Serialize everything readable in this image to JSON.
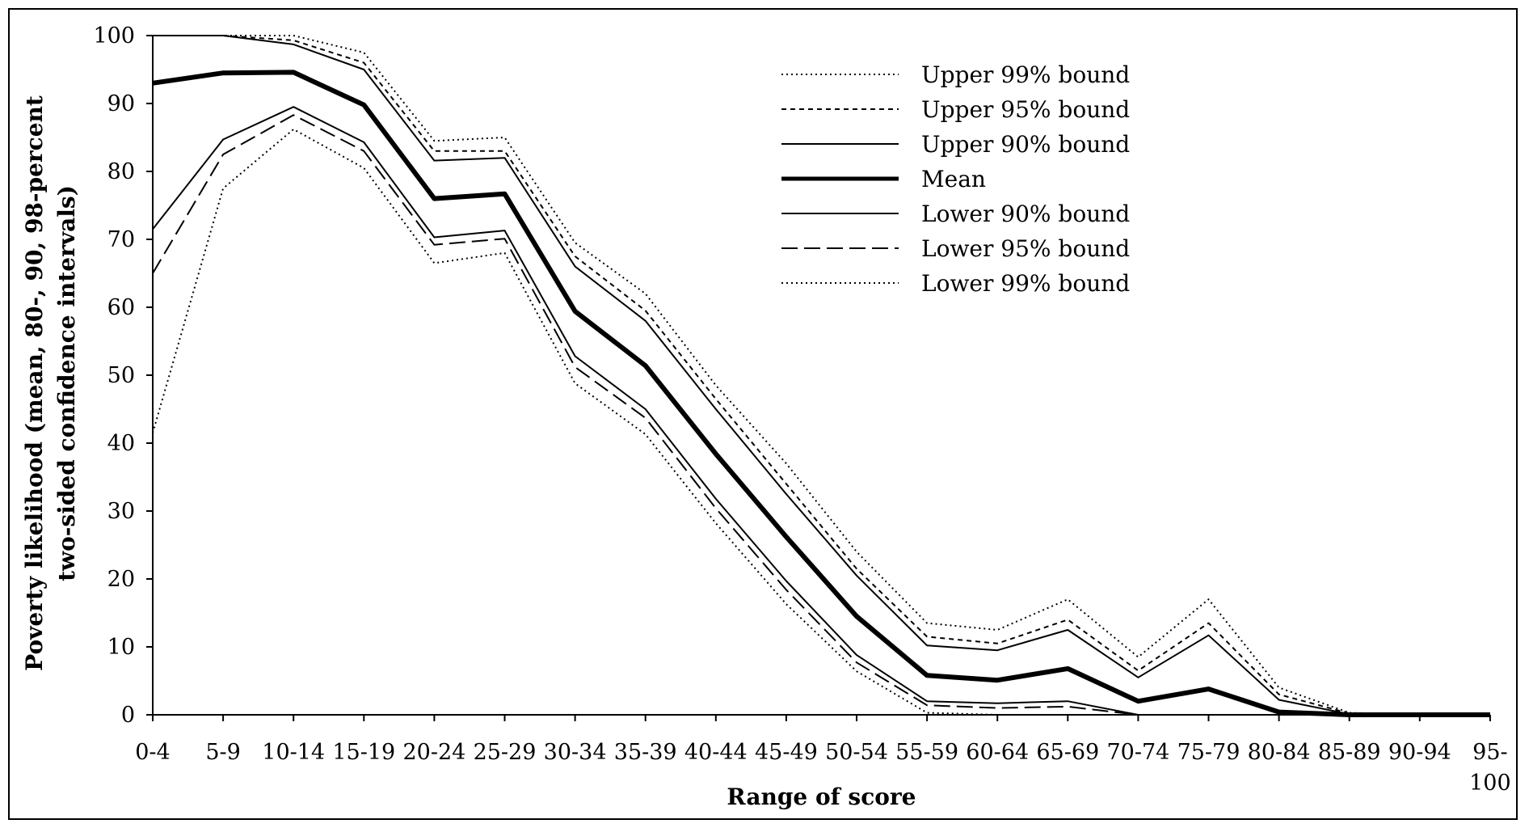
{
  "chart_data": {
    "type": "line",
    "xlabel": "Range of score",
    "ylabel_lines": [
      "Poverty likelihood (mean, 80-, 90, 98-percent",
      "two-sided confidence intervals)"
    ],
    "categories": [
      "0-4",
      "5-9",
      "10-14",
      "15-19",
      "20-24",
      "25-29",
      "30-34",
      "35-39",
      "40-44",
      "45-49",
      "50-54",
      "55-59",
      "60-64",
      "65-69",
      "70-74",
      "75-79",
      "80-84",
      "85-89",
      "90-94",
      "95-100"
    ],
    "category_label_lines": [
      [
        "0-4"
      ],
      [
        "5-9"
      ],
      [
        "10-14"
      ],
      [
        "15-19"
      ],
      [
        "20-24"
      ],
      [
        "25-29"
      ],
      [
        "30-34"
      ],
      [
        "35-39"
      ],
      [
        "40-44"
      ],
      [
        "45-49"
      ],
      [
        "50-54"
      ],
      [
        "55-59"
      ],
      [
        "60-64"
      ],
      [
        "65-69"
      ],
      [
        "70-74"
      ],
      [
        "75-79"
      ],
      [
        "80-84"
      ],
      [
        "85-89"
      ],
      [
        "90-94"
      ],
      [
        "95-",
        "100"
      ]
    ],
    "ylim": [
      0,
      100
    ],
    "yticks": [
      0,
      10,
      20,
      30,
      40,
      50,
      60,
      70,
      80,
      90,
      100
    ],
    "grid": false,
    "legend_position": "top-right",
    "series": [
      {
        "name": "Upper 99% bound",
        "style": "dotted",
        "values": [
          100,
          100,
          100,
          97.5,
          84.5,
          85,
          69.5,
          62,
          48.5,
          37,
          24,
          13.5,
          12.5,
          17,
          8.5,
          17,
          4,
          0.3,
          0,
          0
        ]
      },
      {
        "name": "Upper 95% bound",
        "style": "short-dash",
        "values": [
          100,
          100,
          99.3,
          96,
          83,
          83,
          67.5,
          59.5,
          46.5,
          34,
          21.5,
          11.5,
          10.5,
          14,
          6.5,
          13.5,
          3,
          0.2,
          0,
          0
        ]
      },
      {
        "name": "Upper 90% bound",
        "style": "solid",
        "values": [
          100,
          100,
          98.7,
          95,
          81.6,
          82,
          66,
          58,
          45,
          32.5,
          20.5,
          10.2,
          9.5,
          12.5,
          5.5,
          11.7,
          2.2,
          0.1,
          0,
          0
        ]
      },
      {
        "name": "Mean",
        "style": "bold",
        "values": [
          93,
          94.5,
          94.6,
          89.8,
          76,
          76.7,
          59.4,
          51.4,
          38.4,
          26.2,
          14.5,
          5.8,
          5.1,
          6.8,
          2,
          3.8,
          0.4,
          0,
          0,
          0
        ]
      },
      {
        "name": "Lower 90% bound",
        "style": "solid",
        "values": [
          71.5,
          84.7,
          89.5,
          84.3,
          70.3,
          71.3,
          52.8,
          45,
          31.8,
          19.7,
          8.8,
          2,
          1.7,
          2,
          0,
          0,
          0,
          0,
          0,
          0
        ]
      },
      {
        "name": "Lower 95% bound",
        "style": "long-dash",
        "values": [
          65,
          82.5,
          88.3,
          83,
          69.2,
          70.1,
          51.2,
          43.7,
          30.4,
          18.4,
          7.7,
          1.4,
          1,
          1.2,
          0,
          0,
          0,
          0,
          0,
          0
        ]
      },
      {
        "name": "Lower 99% bound",
        "style": "dotted",
        "values": [
          41.5,
          77.5,
          86.2,
          80.5,
          66.5,
          68,
          48.8,
          41.3,
          28.2,
          16.3,
          6.4,
          0.3,
          0,
          0,
          0,
          0,
          0,
          0,
          0,
          0
        ]
      }
    ]
  }
}
